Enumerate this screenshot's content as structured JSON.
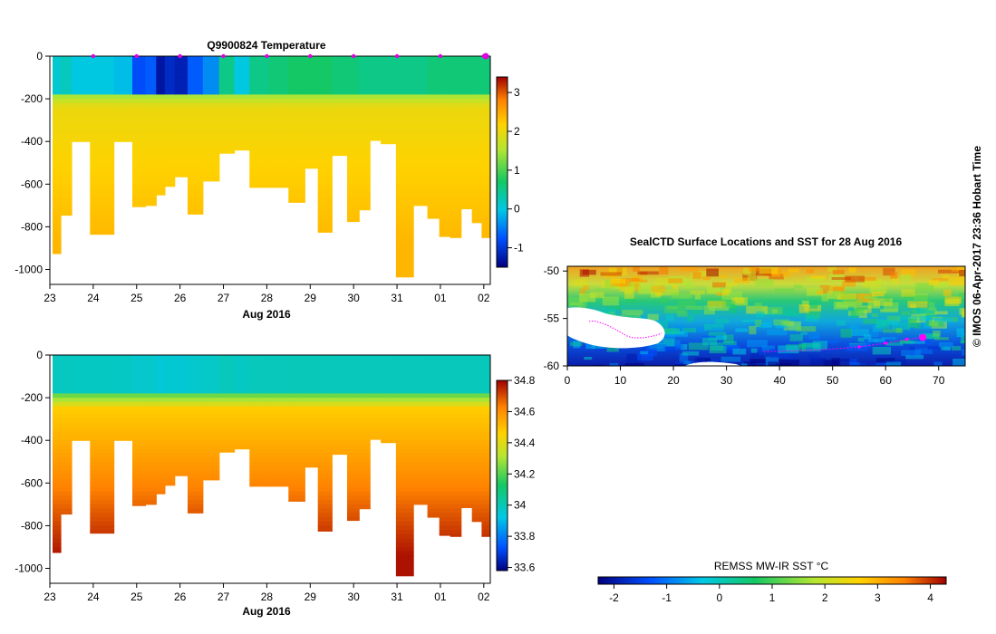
{
  "chart_data": [
    {
      "type": "heatmap",
      "title": "Q9900824  Temperature",
      "x_tick_labels": [
        "23",
        "24",
        "25",
        "26",
        "27",
        "28",
        "29",
        "30",
        "31",
        "01",
        "02"
      ],
      "x_sublabel": "Aug 2016",
      "y_tick_labels": [
        "0",
        "-200",
        "-400",
        "-600",
        "-800",
        "-1000"
      ],
      "ylim": [
        -1070,
        0
      ],
      "colorbar_ticks": [
        "3",
        "2",
        "1",
        "0",
        "-1"
      ],
      "colorbar_range": [
        -1.5,
        3.4
      ],
      "profile_markers": 10,
      "profiles": [
        {
          "x": 23.15,
          "depth": 925,
          "surface_temp": 0.1
        },
        {
          "x": 23.35,
          "depth": 745,
          "surface_temp": 0.2
        },
        {
          "x": 23.65,
          "depth": 400,
          "surface_temp": 0.0
        },
        {
          "x": 24.2,
          "depth": 835,
          "surface_temp": 0.0
        },
        {
          "x": 24.75,
          "depth": 400,
          "surface_temp": -0.1
        },
        {
          "x": 25.05,
          "depth": 705,
          "surface_temp": -0.8
        },
        {
          "x": 25.35,
          "depth": 700,
          "surface_temp": -0.7
        },
        {
          "x": 25.55,
          "depth": 650,
          "surface_temp": -1.3
        },
        {
          "x": 25.75,
          "depth": 610,
          "surface_temp": -1.1
        },
        {
          "x": 26.0,
          "depth": 565,
          "surface_temp": -1.2
        },
        {
          "x": 26.35,
          "depth": 740,
          "surface_temp": -0.7
        },
        {
          "x": 26.7,
          "depth": 585,
          "surface_temp": -0.4
        },
        {
          "x": 27.1,
          "depth": 455,
          "surface_temp": 0.5
        },
        {
          "x": 27.4,
          "depth": 440,
          "surface_temp": 0.0
        },
        {
          "x": 27.8,
          "depth": 615,
          "surface_temp": 0.5
        },
        {
          "x": 28.3,
          "depth": 615,
          "surface_temp": 0.6
        },
        {
          "x": 28.7,
          "depth": 685,
          "surface_temp": 0.7
        },
        {
          "x": 29.05,
          "depth": 525,
          "surface_temp": 0.7
        },
        {
          "x": 29.3,
          "depth": 825,
          "surface_temp": 0.7
        },
        {
          "x": 29.7,
          "depth": 465,
          "surface_temp": 0.6
        },
        {
          "x": 30.0,
          "depth": 775,
          "surface_temp": 0.6
        },
        {
          "x": 30.25,
          "depth": 720,
          "surface_temp": 0.5
        },
        {
          "x": 30.5,
          "depth": 395,
          "surface_temp": 0.5
        },
        {
          "x": 30.75,
          "depth": 410,
          "surface_temp": 0.5
        },
        {
          "x": 31.2,
          "depth": 1035,
          "surface_temp": 0.5
        },
        {
          "x": 31.55,
          "depth": 700,
          "surface_temp": 0.5
        },
        {
          "x": 31.85,
          "depth": 760,
          "surface_temp": 0.6
        },
        {
          "x": 32.1,
          "depth": 845,
          "surface_temp": 0.6
        },
        {
          "x": 32.35,
          "depth": 850,
          "surface_temp": 0.6
        },
        {
          "x": 32.6,
          "depth": 715,
          "surface_temp": 0.6
        },
        {
          "x": 32.85,
          "depth": 780,
          "surface_temp": 0.6
        },
        {
          "x": 33.05,
          "depth": 850,
          "surface_temp": 0.6
        }
      ]
    },
    {
      "type": "heatmap",
      "title": "",
      "x_tick_labels": [
        "23",
        "24",
        "25",
        "26",
        "27",
        "28",
        "29",
        "30",
        "31",
        "01",
        "02"
      ],
      "x_sublabel": "Aug 2016",
      "y_tick_labels": [
        "0",
        "-200",
        "-400",
        "-600",
        "-800",
        "-1000"
      ],
      "ylim": [
        -1070,
        0
      ],
      "colorbar_ticks": [
        "34.8",
        "34.6",
        "34.4",
        "34.2",
        "34",
        "33.8",
        "33.6"
      ],
      "colorbar_range": [
        33.58,
        34.8
      ]
    },
    {
      "type": "heatmap",
      "title": "SealCTD Surface Locations and SST for 28 Aug 2016",
      "x_tick_labels": [
        "0",
        "10",
        "20",
        "30",
        "40",
        "50",
        "60",
        "70"
      ],
      "y_tick_labels": [
        "-50",
        "-55",
        "-60"
      ],
      "xlim": [
        0,
        75
      ],
      "ylim": [
        -60,
        -49.5
      ],
      "colorbar_label": "REMSS MW-IR SST °C",
      "colorbar_ticks": [
        "-2",
        "-1",
        "0",
        "1",
        "2",
        "3",
        "4"
      ],
      "colorbar_range": [
        -2.3,
        4.3
      ],
      "track": [
        [
          37,
          -58.5
        ],
        [
          48,
          -58.3
        ],
        [
          55,
          -58.0
        ],
        [
          60,
          -57.6
        ],
        [
          64,
          -57.2
        ],
        [
          67,
          -57.0
        ]
      ],
      "current_position": [
        67,
        -57.0
      ]
    }
  ],
  "credit": "© IMOS 06-Apr-2017 23:36 Hobart Time"
}
